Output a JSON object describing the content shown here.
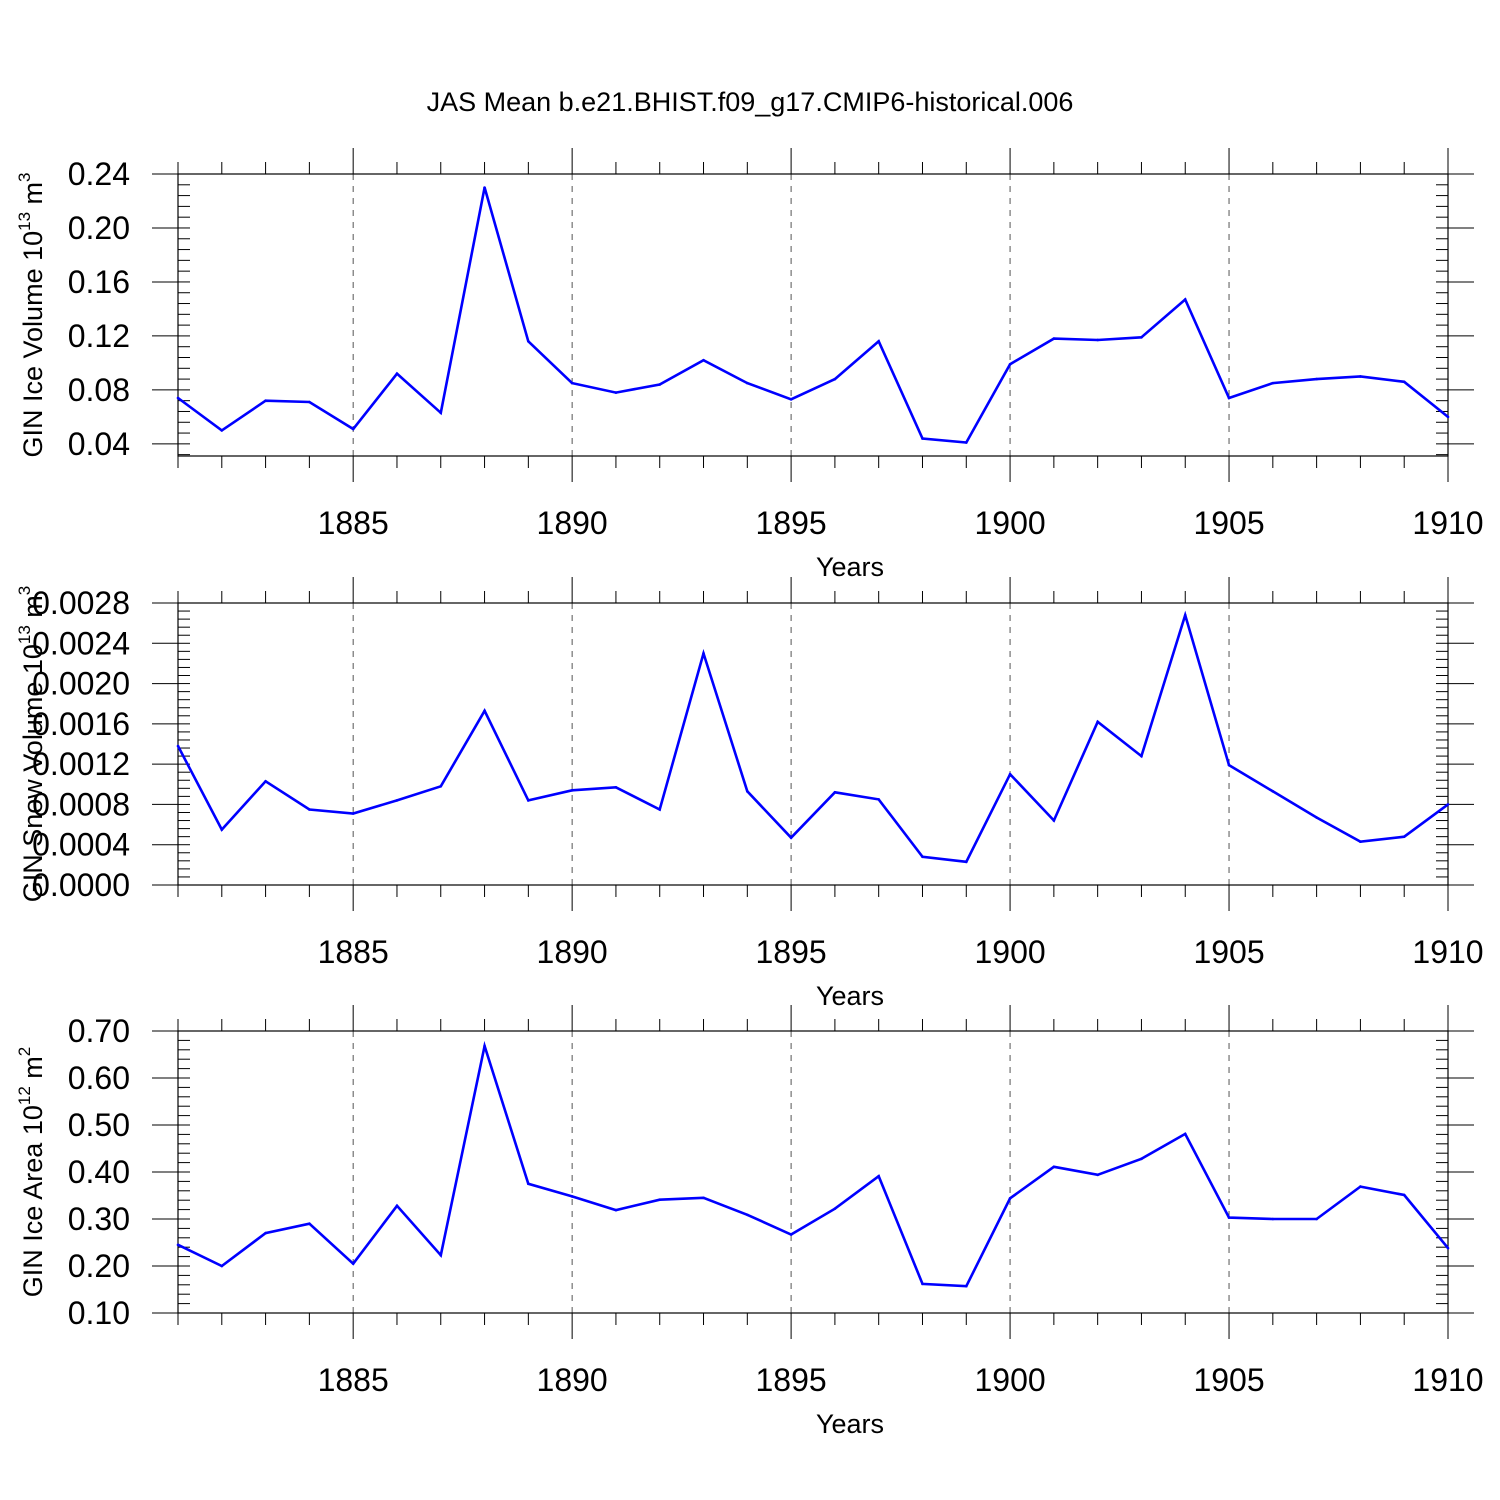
{
  "figure": {
    "title": "JAS Mean b.e21.BHIST.f09_g17.CMIP6-historical.006",
    "line_color": "#0000ff"
  },
  "chart_data": [
    {
      "type": "line",
      "title": "",
      "xlabel": "Years",
      "ylabel": {
        "base": "GIN Ice Volume 10",
        "exp": "13",
        "unit": " m",
        "unit_exp": "3"
      },
      "xlim": [
        1881,
        1910
      ],
      "ylim": [
        0.031,
        0.24
      ],
      "xticks": [
        1885,
        1890,
        1895,
        1900,
        1905,
        1910
      ],
      "yticks": [
        0.04,
        0.08,
        0.12,
        0.16,
        0.2,
        0.24
      ],
      "ytick_labels": [
        "0.04",
        "0.08",
        "0.12",
        "0.16",
        "0.20",
        "0.24"
      ],
      "grid": "dashed vertical at major x ticks",
      "x": [
        1881,
        1882,
        1883,
        1884,
        1885,
        1886,
        1887,
        1888,
        1889,
        1890,
        1891,
        1892,
        1893,
        1894,
        1895,
        1896,
        1897,
        1898,
        1899,
        1900,
        1901,
        1902,
        1903,
        1904,
        1905,
        1906,
        1907,
        1908,
        1909,
        1910
      ],
      "values": [
        0.074,
        0.05,
        0.072,
        0.071,
        0.051,
        0.092,
        0.063,
        0.23,
        0.116,
        0.085,
        0.078,
        0.084,
        0.102,
        0.085,
        0.073,
        0.088,
        0.116,
        0.044,
        0.041,
        0.099,
        0.118,
        0.117,
        0.119,
        0.147,
        0.074,
        0.085,
        0.088,
        0.09,
        0.086,
        0.06
      ]
    },
    {
      "type": "line",
      "title": "",
      "xlabel": "Years",
      "ylabel": {
        "base": "GIN Snow Volume 10",
        "exp": "13",
        "unit": " m",
        "unit_exp": "3"
      },
      "xlim": [
        1881,
        1910
      ],
      "ylim": [
        0.0,
        0.0028
      ],
      "xticks": [
        1885,
        1890,
        1895,
        1900,
        1905,
        1910
      ],
      "yticks": [
        0.0,
        0.0004,
        0.0008,
        0.0012,
        0.0016,
        0.002,
        0.0024,
        0.0028
      ],
      "ytick_labels": [
        "0.0000",
        "0.0004",
        "0.0008",
        "0.0012",
        "0.0016",
        "0.0020",
        "0.0024",
        "0.0028"
      ],
      "grid": "dashed vertical at major x ticks",
      "x": [
        1881,
        1882,
        1883,
        1884,
        1885,
        1886,
        1887,
        1888,
        1889,
        1890,
        1891,
        1892,
        1893,
        1894,
        1895,
        1896,
        1897,
        1898,
        1899,
        1900,
        1901,
        1902,
        1903,
        1904,
        1905,
        1906,
        1907,
        1908,
        1909,
        1910
      ],
      "values": [
        0.00138,
        0.00055,
        0.00103,
        0.00075,
        0.00071,
        0.00084,
        0.00098,
        0.00173,
        0.00084,
        0.00094,
        0.00097,
        0.00075,
        0.0023,
        0.00093,
        0.00047,
        0.00092,
        0.00085,
        0.00028,
        0.00023,
        0.0011,
        0.00064,
        0.00162,
        0.00128,
        0.00268,
        0.00119,
        0.00093,
        0.00067,
        0.00043,
        0.00048,
        0.0008
      ]
    },
    {
      "type": "line",
      "title": "",
      "xlabel": "Years",
      "ylabel": {
        "base": "GIN Ice Area 10",
        "exp": "12",
        "unit": " m",
        "unit_exp": "2"
      },
      "xlim": [
        1881,
        1910
      ],
      "ylim": [
        0.1,
        0.7
      ],
      "xticks": [
        1885,
        1890,
        1895,
        1900,
        1905,
        1910
      ],
      "yticks": [
        0.1,
        0.2,
        0.3,
        0.4,
        0.5,
        0.6,
        0.7
      ],
      "ytick_labels": [
        "0.10",
        "0.20",
        "0.30",
        "0.40",
        "0.50",
        "0.60",
        "0.70"
      ],
      "grid": "dashed vertical at major x ticks",
      "x": [
        1881,
        1882,
        1883,
        1884,
        1885,
        1886,
        1887,
        1888,
        1889,
        1890,
        1891,
        1892,
        1893,
        1894,
        1895,
        1896,
        1897,
        1898,
        1899,
        1900,
        1901,
        1902,
        1903,
        1904,
        1905,
        1906,
        1907,
        1908,
        1909,
        1910
      ],
      "values": [
        0.245,
        0.2,
        0.27,
        0.29,
        0.205,
        0.328,
        0.223,
        0.668,
        0.375,
        0.348,
        0.319,
        0.341,
        0.345,
        0.309,
        0.267,
        0.322,
        0.391,
        0.162,
        0.157,
        0.344,
        0.411,
        0.394,
        0.428,
        0.481,
        0.303,
        0.3,
        0.3,
        0.369,
        0.351,
        0.238
      ]
    }
  ]
}
